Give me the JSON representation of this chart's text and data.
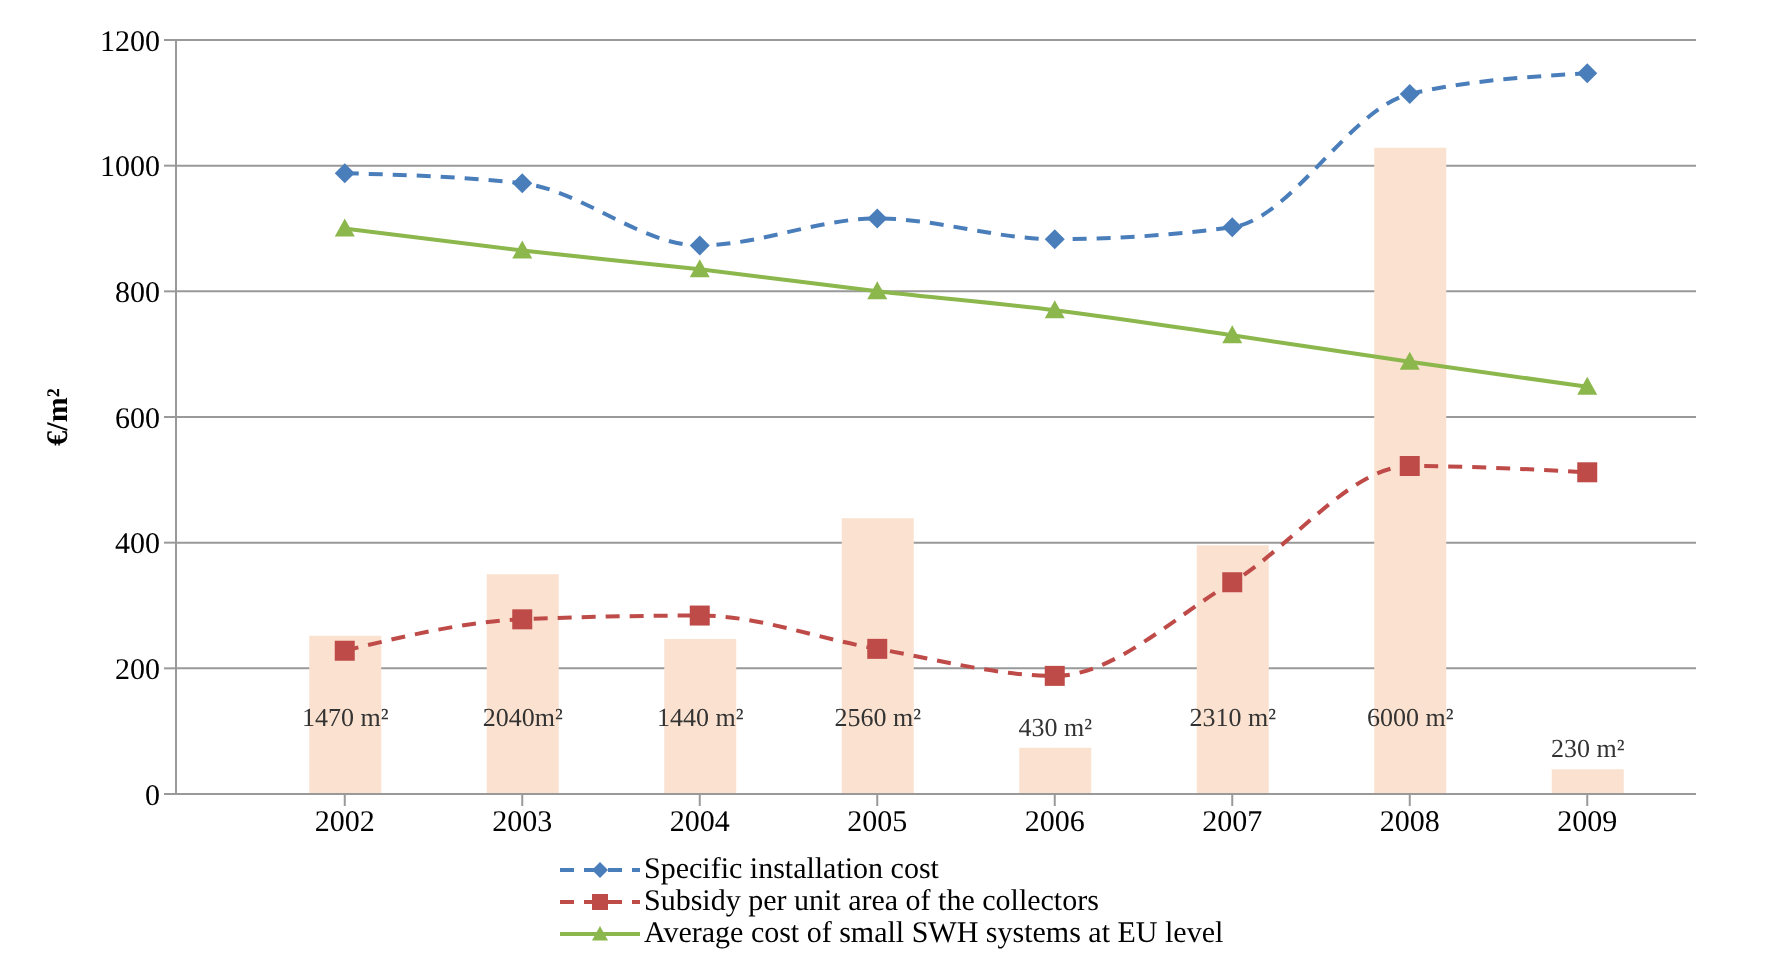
{
  "chart_data": {
    "type": "line",
    "ylabel": "€/m²",
    "categories": [
      "2002",
      "2003",
      "2004",
      "2005",
      "2006",
      "2007",
      "2008",
      "2009"
    ],
    "ylim": [
      0,
      1200
    ],
    "yticks": [
      0,
      200,
      400,
      600,
      800,
      1000,
      1200
    ],
    "y2lim": [
      0,
      7000
    ],
    "grid": "y",
    "legend": "bottom",
    "series": [
      {
        "type": "bar",
        "axis": "y2",
        "color": "#fbe1cf",
        "values": [
          1470,
          2040,
          1440,
          2560,
          430,
          2310,
          6000,
          230
        ],
        "value_labels": [
          "1470 m²",
          "2040m²",
          "1440 m²",
          "2560 m²",
          "430 m²",
          "2310 m²",
          "6000  m²",
          "230 m²"
        ]
      },
      {
        "name": "Specific installation cost",
        "color": "#4a7ebb",
        "marker": "diamond",
        "line_style": "dashed",
        "values": [
          988,
          972,
          873,
          916,
          883,
          902,
          1114,
          1147
        ]
      },
      {
        "name": "Subsidy per unit area of the collectors",
        "color": "#be4b48",
        "marker": "square",
        "line_style": "dashed",
        "values": [
          228,
          278,
          284,
          231,
          188,
          337,
          522,
          512
        ]
      },
      {
        "name": "Average cost of small SWH systems at EU level",
        "color": "#8cb74c",
        "marker": "triangle",
        "line_style": "solid",
        "values": [
          900,
          865,
          835,
          800,
          770,
          730,
          688,
          648
        ]
      }
    ]
  }
}
